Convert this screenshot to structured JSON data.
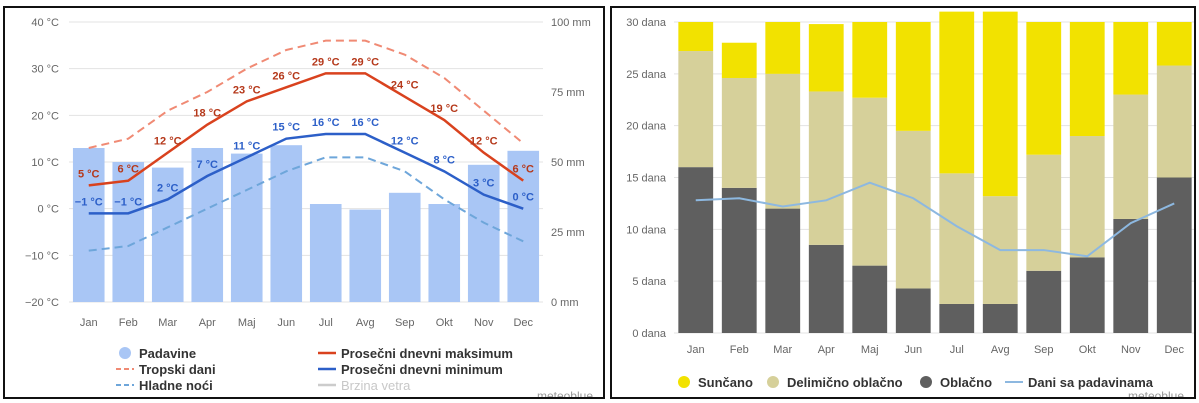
{
  "chart_data": [
    {
      "type": "line",
      "months": [
        "Jan",
        "Feb",
        "Mar",
        "Apr",
        "Maj",
        "Jun",
        "Jul",
        "Avg",
        "Sep",
        "Okt",
        "Nov",
        "Dec"
      ],
      "y_left": {
        "ticks": [
          "40 °C",
          "30 °C",
          "20 °C",
          "10 °C",
          "0 °C",
          "−10 °C",
          "−20 °C"
        ],
        "ylim": [
          -20,
          40
        ]
      },
      "y_right": {
        "ticks": [
          "100 mm",
          "75 mm",
          "50 mm",
          "25 mm",
          "0 mm"
        ],
        "ylim": [
          0,
          100
        ]
      },
      "colors": {
        "precip": "#a9c6f5",
        "max": "#d9421e",
        "min": "#2c5fc8",
        "hot": "#f08a74",
        "cold": "#6ea6da",
        "wind": "#cccccc"
      },
      "precipitation_mm": [
        55,
        50,
        48,
        55,
        53,
        56,
        35,
        33,
        39,
        35,
        49,
        54
      ],
      "max_temp": [
        5,
        6,
        12,
        18,
        23,
        26,
        29,
        29,
        24,
        19,
        12,
        6
      ],
      "min_temp": [
        -1,
        -1,
        2,
        7,
        11,
        15,
        16,
        16,
        12,
        8,
        3,
        0
      ],
      "hot_days": [
        13,
        15,
        21,
        25,
        30,
        34,
        36,
        36,
        33,
        28,
        21,
        14
      ],
      "cold_nights": [
        -9,
        -8,
        -4,
        0,
        4,
        8,
        11,
        11,
        8,
        2,
        -3,
        -7
      ],
      "max_labels": [
        "5 °C",
        "6 °C",
        "12 °C",
        "18 °C",
        "23 °C",
        "26 °C",
        "29 °C",
        "29 °C",
        "24 °C",
        "19 °C",
        "12 °C",
        "6 °C"
      ],
      "min_labels": [
        "−1 °C",
        "−1 °C",
        "2 °C",
        "7 °C",
        "11 °C",
        "15 °C",
        "16 °C",
        "16 °C",
        "12 °C",
        "8 °C",
        "3 °C",
        "0 °C"
      ],
      "legend": {
        "precip": "Padavine",
        "hot": "Tropski dani",
        "cold": "Hladne noći",
        "max": "Prosečni dnevni maksimum",
        "min": "Prosečni dnevni minimum",
        "wind": "Brzina vetra"
      },
      "credit": "meteoblue"
    },
    {
      "type": "bar",
      "stacked": true,
      "months": [
        "Jan",
        "Feb",
        "Mar",
        "Apr",
        "Maj",
        "Jun",
        "Jul",
        "Avg",
        "Sep",
        "Okt",
        "Nov",
        "Dec"
      ],
      "y_ticks": [
        "30 dana",
        "25 dana",
        "20 dana",
        "15 dana",
        "10 dana",
        "5 dana",
        "0 dana"
      ],
      "ylim": [
        0,
        30
      ],
      "colors": {
        "sunny": "#f2e200",
        "partly": "#d6d09a",
        "cloudy": "#5f5f5f",
        "precip": "#8db8e0"
      },
      "cloudy_days": [
        16,
        14,
        12,
        8.5,
        6.5,
        4.3,
        2.8,
        2.8,
        6,
        7.3,
        11,
        15
      ],
      "partly_cloudy_days": [
        11.2,
        10.6,
        13,
        14.8,
        16.2,
        15.2,
        12.6,
        10.4,
        11.2,
        11.7,
        12,
        10.8
      ],
      "sunny_days": [
        2.8,
        3.4,
        5,
        6.5,
        7.3,
        10.5,
        15.6,
        17.8,
        12.8,
        11,
        7,
        4.2
      ],
      "precipitation_days": [
        12.8,
        13,
        12.2,
        12.8,
        14.5,
        13,
        10.3,
        8,
        8,
        7.4,
        10.6,
        12.5
      ],
      "legend": {
        "sunny": "Sunčano",
        "partly": "Delimično oblačno",
        "cloudy": "Oblačno",
        "precip": "Dani sa padavinama"
      },
      "credit": "meteoblue"
    }
  ]
}
